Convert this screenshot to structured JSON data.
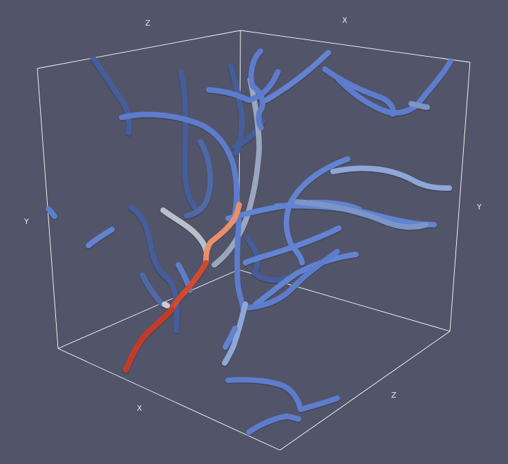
{
  "axes": {
    "z_top": "Z",
    "x_top": "X",
    "y_left": "Y",
    "y_right": "Y",
    "x_bottom": "X",
    "z_bottom": "Z"
  },
  "colors": {
    "background": "#525469",
    "bounding_box": "#ffffff",
    "low": "#5d7ccc",
    "dark": "#445d9a",
    "light": "#9fb6d8",
    "gray": "#b4bcc6",
    "mid_warm": "#e8906a",
    "high": "#c23b2b"
  }
}
